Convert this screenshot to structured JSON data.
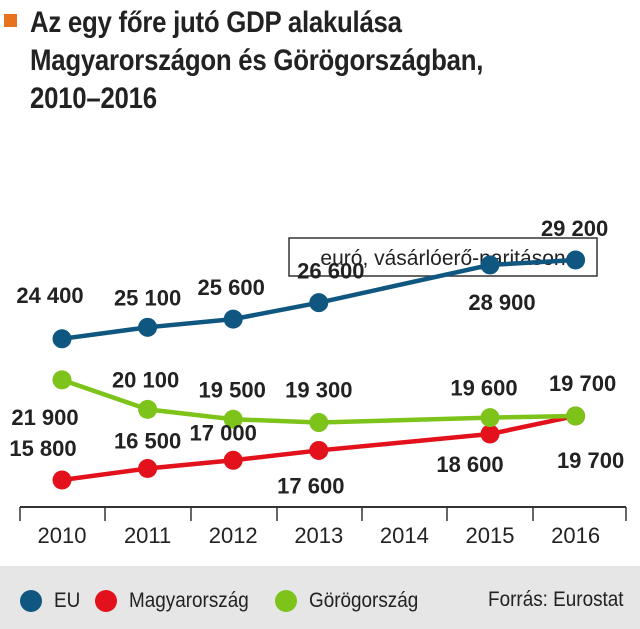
{
  "title_lines": [
    "Az egy főre jutó GDP alakulása",
    "Magyarországon és Görögországban,",
    "2010–2016"
  ],
  "unit_note": "euró, vásárlóerő-paritáson",
  "source": "Forrás: Eurostat",
  "colors": {
    "accent": "#e8731f",
    "eu": "#0f5780",
    "hungary": "#e3111b",
    "greece": "#7dc31a",
    "axis": "#333333",
    "label": "#222222",
    "footer_bg": "#e6e6e6"
  },
  "chart_data": {
    "type": "line",
    "title": "Az egy főre jutó GDP alakulása Magyarországon és Görögországban, 2010–2016",
    "x": [
      2010,
      2011,
      2012,
      2013,
      2014,
      2015,
      2016
    ],
    "x_tick_labels": [
      "2010",
      "2011",
      "2012",
      "2013",
      "2014",
      "2015",
      "2016"
    ],
    "ylabel": "euró, vásárlóerő-paritáson",
    "grid": false,
    "legend_position": "bottom",
    "series": [
      {
        "name": "EU",
        "color": "#0f5780",
        "x": [
          2010,
          2011,
          2012,
          2013,
          2015,
          2016
        ],
        "values": [
          24400,
          25100,
          25600,
          26600,
          28900,
          29200
        ],
        "labels": [
          "24 400",
          "25 100",
          "25 600",
          "26 600",
          "28 900",
          "29 200"
        ]
      },
      {
        "name": "Magyarország",
        "color": "#e3111b",
        "x": [
          2010,
          2011,
          2012,
          2013,
          2015,
          2016
        ],
        "values": [
          15800,
          16500,
          17000,
          17600,
          18600,
          19700
        ],
        "labels": [
          "15 800",
          "16 500",
          "17 000",
          "17 600",
          "18 600",
          "19 700"
        ]
      },
      {
        "name": "Görögország",
        "color": "#7dc31a",
        "x": [
          2010,
          2011,
          2012,
          2013,
          2015,
          2016
        ],
        "values": [
          21900,
          20100,
          19500,
          19300,
          19600,
          19700
        ],
        "labels": [
          "21 900",
          "20 100",
          "19 500",
          "19 300",
          "19 600",
          "19 700"
        ]
      }
    ]
  }
}
